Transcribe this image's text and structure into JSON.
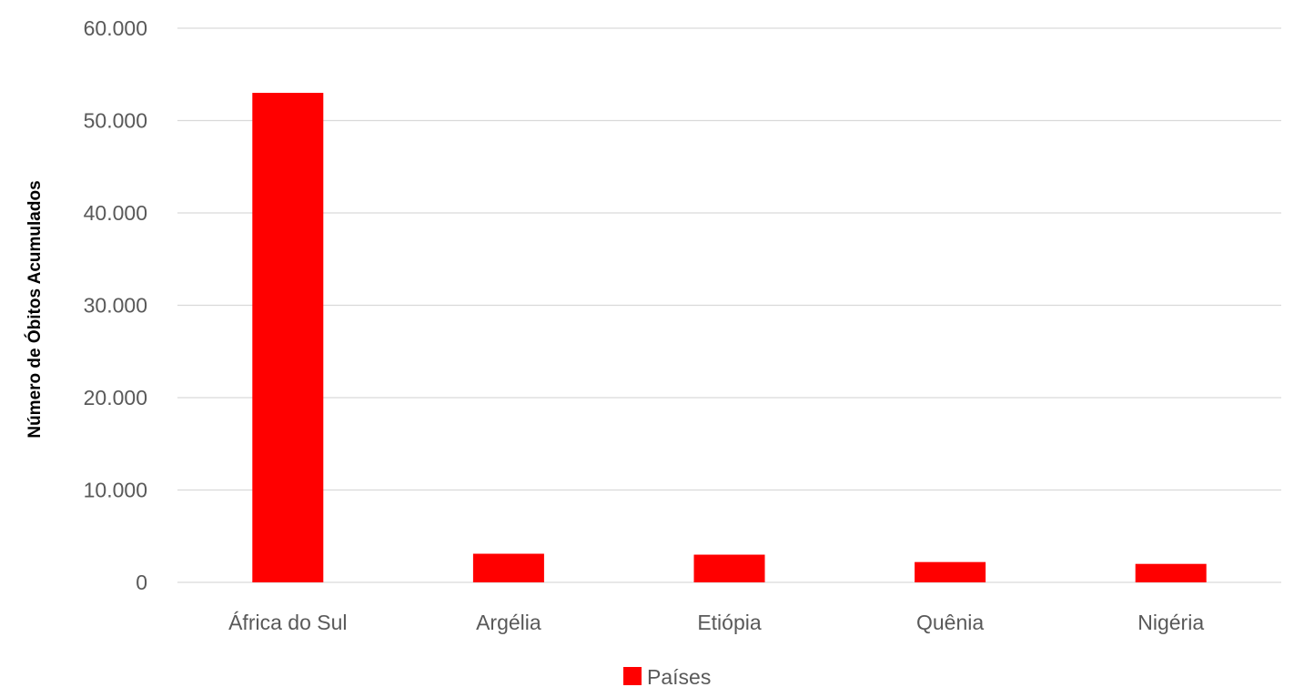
{
  "chart_data": {
    "type": "bar",
    "categories": [
      "África do Sul",
      "Argélia",
      "Etiópia",
      "Quênia",
      "Nigéria"
    ],
    "series": [
      {
        "name": "Países",
        "values": [
          53000,
          3100,
          3000,
          2200,
          2000
        ],
        "color": "#ff0000"
      }
    ],
    "title": "",
    "xlabel": "",
    "ylabel": "Número de Óbitos Acumulados",
    "ylim": [
      0,
      60000
    ],
    "yticks": [
      0,
      10000,
      20000,
      30000,
      40000,
      50000,
      60000
    ],
    "ytick_labels": [
      "0",
      "10.000",
      "20.000",
      "30.000",
      "40.000",
      "50.000",
      "60.000"
    ],
    "grid": true,
    "gridline_color": "#d9d9d9",
    "legend_position": "bottom-center"
  }
}
